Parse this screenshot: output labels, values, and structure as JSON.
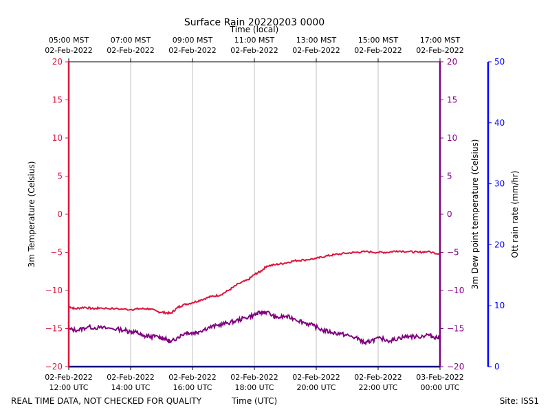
{
  "chart_data": {
    "type": "line",
    "title": "Surface Rain 20220203 0000",
    "top_xlabel": "Time (local)",
    "xlabel": "Time (UTC)",
    "left_ylabel": "3m Temperature (Celsius)",
    "right_ylabel": "3m Dew point temperature (Celsius)",
    "rain_ylabel": "Ott rain rate (mm/hr)",
    "footer_left": "REAL TIME DATA, NOT CHECKED FOR QUALITY",
    "footer_right": "Site: ISS1",
    "xlim": [
      12,
      24
    ],
    "ylim": [
      -20,
      20
    ],
    "rain_ylim": [
      0,
      50
    ],
    "grid": "x-vertical",
    "left_ticks": [
      -20,
      -15,
      -10,
      -5,
      0,
      5,
      10,
      15,
      20
    ],
    "left_tick_labels": [
      "−20",
      "−15",
      "−10",
      "−5",
      "0",
      "5",
      "10",
      "15",
      "20"
    ],
    "right_tick_labels": [
      "−20",
      "−15",
      "−10",
      "−5",
      "0",
      "5",
      "10",
      "15",
      "20"
    ],
    "rain_ticks": [
      0,
      10,
      20,
      30,
      40,
      50
    ],
    "rain_tick_labels": [
      "0",
      "10",
      "20",
      "30",
      "40",
      "50"
    ],
    "x_ticks": [
      12,
      14,
      16,
      18,
      20,
      22,
      24
    ],
    "bottom_tick_labels": [
      [
        "02-Feb-2022",
        "12:00 UTC"
      ],
      [
        "02-Feb-2022",
        "14:00 UTC"
      ],
      [
        "02-Feb-2022",
        "16:00 UTC"
      ],
      [
        "02-Feb-2022",
        "18:00 UTC"
      ],
      [
        "02-Feb-2022",
        "20:00 UTC"
      ],
      [
        "02-Feb-2022",
        "22:00 UTC"
      ],
      [
        "03-Feb-2022",
        "00:00 UTC"
      ]
    ],
    "top_tick_labels": [
      [
        "05:00 MST",
        "02-Feb-2022"
      ],
      [
        "07:00 MST",
        "02-Feb-2022"
      ],
      [
        "09:00 MST",
        "02-Feb-2022"
      ],
      [
        "11:00 MST",
        "02-Feb-2022"
      ],
      [
        "13:00 MST",
        "02-Feb-2022"
      ],
      [
        "15:00 MST",
        "02-Feb-2022"
      ],
      [
        "17:00 MST",
        "02-Feb-2022"
      ]
    ],
    "colors": {
      "temperature": "#dc143c",
      "dewpoint": "#800080",
      "rain": "#0000ff",
      "grid": "#b0b0b0"
    },
    "series": [
      {
        "name": "3m Temperature",
        "axis": "left",
        "x": [
          12.0,
          12.2,
          12.5,
          12.8,
          13.0,
          13.5,
          14.0,
          14.3,
          14.6,
          14.9,
          15.1,
          15.3,
          15.5,
          15.7,
          16.0,
          16.3,
          16.6,
          16.9,
          17.2,
          17.5,
          17.8,
          18.0,
          18.2,
          18.4,
          18.7,
          19.0,
          19.3,
          19.6,
          20.0,
          20.3,
          20.6,
          21.0,
          21.3,
          21.6,
          22.0,
          22.3,
          22.6,
          23.0,
          23.3,
          23.6,
          24.0
        ],
        "values": [
          -12.1,
          -12.4,
          -12.2,
          -12.4,
          -12.3,
          -12.4,
          -12.5,
          -12.4,
          -12.4,
          -12.8,
          -12.9,
          -13.0,
          -12.3,
          -11.9,
          -11.6,
          -11.2,
          -10.8,
          -10.6,
          -9.9,
          -9.1,
          -8.6,
          -7.9,
          -7.5,
          -6.8,
          -6.6,
          -6.4,
          -6.1,
          -6.0,
          -5.8,
          -5.5,
          -5.3,
          -5.1,
          -5.0,
          -4.9,
          -5.0,
          -5.0,
          -4.8,
          -4.9,
          -5.0,
          -4.9,
          -5.2
        ]
      },
      {
        "name": "3m Dew point temperature",
        "axis": "right",
        "x": [
          12.0,
          12.3,
          12.6,
          13.0,
          13.4,
          13.8,
          14.0,
          14.2,
          14.4,
          14.6,
          14.9,
          15.1,
          15.3,
          15.5,
          15.8,
          16.0,
          16.2,
          16.5,
          16.8,
          17.1,
          17.4,
          17.7,
          18.0,
          18.2,
          18.4,
          18.7,
          19.0,
          19.3,
          19.6,
          19.9,
          20.2,
          20.5,
          20.8,
          21.1,
          21.4,
          21.6,
          21.8,
          22.1,
          22.4,
          22.7,
          23.0,
          23.3,
          23.6,
          23.8,
          24.0
        ],
        "values": [
          -15.1,
          -15.2,
          -14.8,
          -14.9,
          -15.0,
          -15.2,
          -15.4,
          -15.5,
          -16.0,
          -16.0,
          -16.1,
          -16.3,
          -16.8,
          -16.2,
          -15.5,
          -15.6,
          -15.4,
          -14.9,
          -14.6,
          -14.3,
          -14.0,
          -13.6,
          -13.2,
          -12.9,
          -12.8,
          -13.6,
          -13.4,
          -13.7,
          -14.2,
          -14.6,
          -15.2,
          -15.5,
          -15.7,
          -16.0,
          -16.4,
          -17.0,
          -16.5,
          -16.3,
          -16.6,
          -16.2,
          -16.0,
          -16.1,
          -15.8,
          -16.1,
          -16.2
        ]
      },
      {
        "name": "Ott rain rate",
        "axis": "rain",
        "x": [
          12,
          24
        ],
        "values": [
          0,
          0
        ]
      }
    ]
  }
}
